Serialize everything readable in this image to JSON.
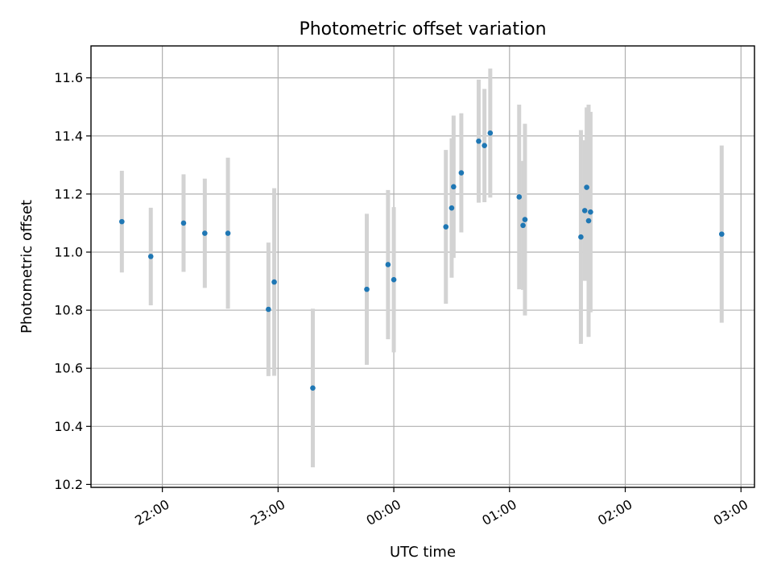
{
  "chart_data": {
    "type": "scatter",
    "title": "Photometric offset variation",
    "xlabel": "UTC time",
    "ylabel": "Photometric offset",
    "grid": true,
    "x_axis": {
      "kind": "time",
      "range": [
        "21:23",
        "03:07"
      ],
      "ticks": [
        {
          "time": "22:00",
          "label": "22:00"
        },
        {
          "time": "23:00",
          "label": "23:00"
        },
        {
          "time": "00:00",
          "label": "00:00"
        },
        {
          "time": "01:00",
          "label": "01:00"
        },
        {
          "time": "02:00",
          "label": "02:00"
        },
        {
          "time": "03:00",
          "label": "03:00"
        }
      ]
    },
    "y_axis": {
      "range": [
        10.19,
        11.71
      ],
      "ticks": [
        {
          "value": 10.2,
          "label": "10.2"
        },
        {
          "value": 10.4,
          "label": "10.4"
        },
        {
          "value": 10.6,
          "label": "10.6"
        },
        {
          "value": 10.8,
          "label": "10.8"
        },
        {
          "value": 11.0,
          "label": "11.0"
        },
        {
          "value": 11.2,
          "label": "11.2"
        },
        {
          "value": 11.4,
          "label": "11.4"
        },
        {
          "value": 11.6,
          "label": "11.6"
        }
      ]
    },
    "colors": {
      "points": "#1f77b4",
      "error_bars": "#d3d3d3"
    },
    "points": [
      {
        "time": "21:39",
        "y": 11.105,
        "err": 0.175
      },
      {
        "time": "21:54",
        "y": 10.985,
        "err": 0.168
      },
      {
        "time": "22:11",
        "y": 11.1,
        "err": 0.168
      },
      {
        "time": "22:22",
        "y": 11.065,
        "err": 0.188
      },
      {
        "time": "22:34",
        "y": 11.065,
        "err": 0.26
      },
      {
        "time": "22:55",
        "y": 10.803,
        "err": 0.23
      },
      {
        "time": "22:58",
        "y": 10.897,
        "err": 0.323
      },
      {
        "time": "23:18",
        "y": 10.532,
        "err": 0.273
      },
      {
        "time": "23:46",
        "y": 10.872,
        "err": 0.26
      },
      {
        "time": "23:57",
        "y": 10.957,
        "err": 0.257
      },
      {
        "time": "00:00",
        "y": 10.905,
        "err": 0.25
      },
      {
        "time": "00:27",
        "y": 11.087,
        "err": 0.265
      },
      {
        "time": "00:30",
        "y": 11.152,
        "err": 0.24
      },
      {
        "time": "00:31",
        "y": 11.225,
        "err": 0.245
      },
      {
        "time": "00:35",
        "y": 11.273,
        "err": 0.205
      },
      {
        "time": "00:44",
        "y": 11.382,
        "err": 0.212
      },
      {
        "time": "00:47",
        "y": 11.367,
        "err": 0.195
      },
      {
        "time": "00:50",
        "y": 11.41,
        "err": 0.222
      },
      {
        "time": "01:05",
        "y": 11.19,
        "err": 0.318
      },
      {
        "time": "01:07",
        "y": 11.092,
        "err": 0.222
      },
      {
        "time": "01:08",
        "y": 11.112,
        "err": 0.33
      },
      {
        "time": "01:37",
        "y": 11.052,
        "err": 0.368
      },
      {
        "time": "01:39",
        "y": 11.143,
        "err": 0.242
      },
      {
        "time": "01:40",
        "y": 11.223,
        "err": 0.275
      },
      {
        "time": "01:41",
        "y": 11.108,
        "err": 0.4
      },
      {
        "time": "01:42",
        "y": 11.138,
        "err": 0.345
      },
      {
        "time": "02:50",
        "y": 11.062,
        "err": 0.305
      }
    ]
  }
}
